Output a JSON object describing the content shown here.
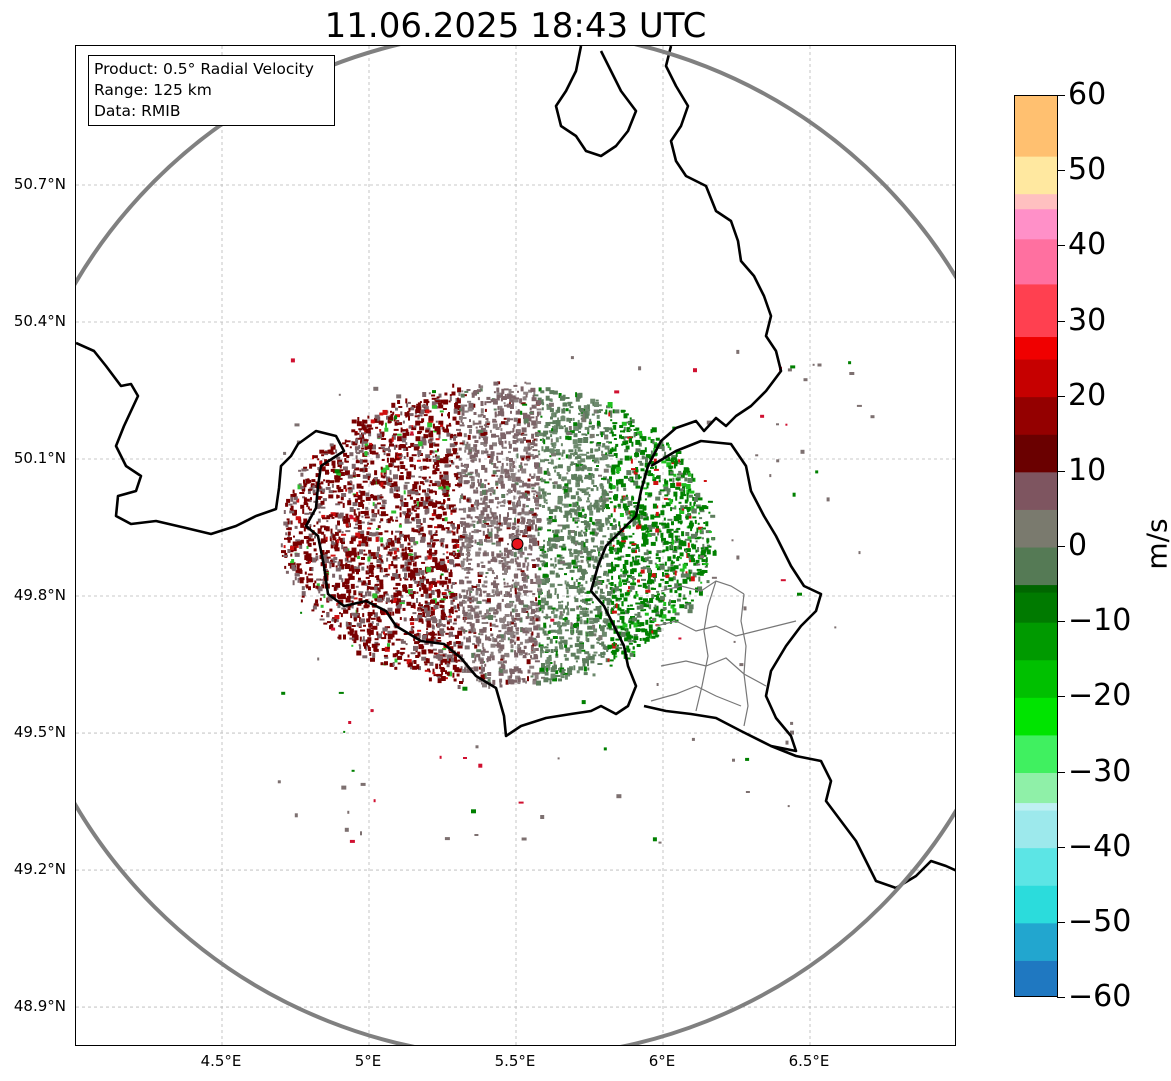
{
  "title": "11.06.2025 18:43 UTC",
  "info": {
    "product": "Product: 0.5° Radial Velocity",
    "range": "Range: 125 km",
    "source": "Data: RMIB"
  },
  "axes": {
    "lat_labels": [
      "50.7°N",
      "50.4°N",
      "50.1°N",
      "49.8°N",
      "49.5°N",
      "49.2°N",
      "48.9°N"
    ],
    "lon_labels": [
      "4.5°E",
      "5°E",
      "5.5°E",
      "6°E",
      "6.5°E"
    ],
    "lat_ticks": [
      50.7,
      50.4,
      50.1,
      49.8,
      49.5,
      49.2,
      48.9
    ],
    "lon_ticks": [
      4.5,
      5.0,
      5.5,
      6.0,
      6.5
    ],
    "lat_range": [
      48.8,
      50.99
    ],
    "lon_range": [
      4.0,
      7.0
    ],
    "grid": true
  },
  "radar": {
    "site_lon": 5.505,
    "site_lat": 49.914,
    "range_km": 125,
    "site_color": "#e8141c",
    "range_ring_color": "#808080"
  },
  "colorbar": {
    "unit": "m/s",
    "min": -60,
    "max": 60,
    "tick_values": [
      60,
      50,
      40,
      30,
      20,
      10,
      0,
      -10,
      -20,
      -30,
      -40,
      -50,
      -60
    ],
    "tick_labels": [
      "60",
      "50",
      "40",
      "30",
      "20",
      "10",
      "0",
      "−10",
      "−20",
      "−30",
      "−40",
      "−50",
      "−60"
    ],
    "stops": [
      [
        -60,
        "#1f78c1"
      ],
      [
        -55,
        "#22a6cf"
      ],
      [
        -50,
        "#2bdcdc"
      ],
      [
        -45,
        "#5ce5e5"
      ],
      [
        -40,
        "#9de9ec"
      ],
      [
        -35,
        "#bff0f2"
      ],
      [
        -34,
        "#8ff0a8"
      ],
      [
        -30,
        "#40f060"
      ],
      [
        -25,
        "#00e400"
      ],
      [
        -20,
        "#00c000"
      ],
      [
        -15,
        "#009a00"
      ],
      [
        -10,
        "#007a00"
      ],
      [
        -6,
        "#006600"
      ],
      [
        -5,
        "#557a55"
      ],
      [
        0,
        "#7a7a6e"
      ],
      [
        5,
        "#7e5560"
      ],
      [
        10,
        "#6a0000"
      ],
      [
        15,
        "#940000"
      ],
      [
        20,
        "#c60000"
      ],
      [
        25,
        "#f00000"
      ],
      [
        28,
        "#ff4050"
      ],
      [
        35,
        "#ff70a0"
      ],
      [
        41,
        "#ff90c8"
      ],
      [
        45,
        "#ffc0c0"
      ],
      [
        47,
        "#ffe8a0"
      ],
      [
        52,
        "#ffc070"
      ],
      [
        60,
        "#ff9a50"
      ]
    ]
  },
  "colors": {
    "outbound": "#780000",
    "inbound": "#008000",
    "near_zero_out": "#7d6468",
    "near_zero_in": "#5d7d5d",
    "border": "#000000",
    "subregion": "#777777"
  }
}
